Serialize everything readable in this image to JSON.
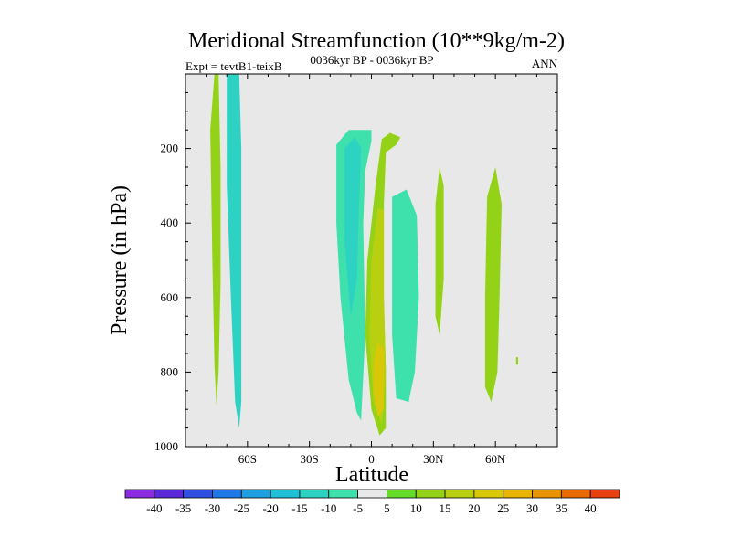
{
  "chart_data": {
    "type": "contour",
    "title": "Meridional Streamfunction (10**9kg/m-2)",
    "subtitle": "0036kyr BP - 0036kyr BP",
    "left_label": "Expt = tevtB1-teixB",
    "right_label": "ANN",
    "xlabel": "Latitude",
    "ylabel": "Pressure (in hPa)",
    "xlim": [
      -90,
      90
    ],
    "ylim": [
      1000,
      0
    ],
    "x_ticks": [
      {
        "value": -60,
        "label": "60S"
      },
      {
        "value": -30,
        "label": "30S"
      },
      {
        "value": 0,
        "label": "0"
      },
      {
        "value": 30,
        "label": "30N"
      },
      {
        "value": 60,
        "label": "60N"
      }
    ],
    "y_ticks": [
      {
        "value": 200,
        "label": "200"
      },
      {
        "value": 400,
        "label": "400"
      },
      {
        "value": 600,
        "label": "600"
      },
      {
        "value": 800,
        "label": "800"
      },
      {
        "value": 1000,
        "label": "1000"
      }
    ],
    "background_color": "#e8e8e8",
    "colorbar": {
      "labels": [
        "-40",
        "-35",
        "-30",
        "-25",
        "-20",
        "-15",
        "-10",
        "-5",
        "5",
        "10",
        "15",
        "20",
        "25",
        "30",
        "35",
        "40"
      ],
      "colors": [
        "#8a2be2",
        "#5a28d8",
        "#2f4fe0",
        "#1e78e8",
        "#1ea0e0",
        "#1ec0d8",
        "#2ed2c2",
        "#3ee0ac",
        "#e8e8e8",
        "#64dc28",
        "#94d218",
        "#b8d010",
        "#d8c808",
        "#e8b400",
        "#e89400",
        "#e86a00",
        "#e84010"
      ]
    },
    "regions": [
      {
        "value": 10,
        "points": [
          [
            -76,
            0
          ],
          [
            -74,
            0
          ],
          [
            -73,
            250
          ],
          [
            -73,
            560
          ],
          [
            -74,
            800
          ],
          [
            -75,
            890
          ],
          [
            -76,
            780
          ],
          [
            -77,
            500
          ],
          [
            -78,
            150
          ]
        ]
      },
      {
        "value": -15,
        "points": [
          [
            -70,
            0
          ],
          [
            -64,
            0
          ],
          [
            -63,
            200
          ],
          [
            -63,
            600
          ],
          [
            -63,
            880
          ],
          [
            -64,
            950
          ],
          [
            -66,
            880
          ],
          [
            -68,
            600
          ],
          [
            -70,
            300
          ]
        ]
      },
      {
        "value": -10,
        "points": [
          [
            -17,
            190
          ],
          [
            -11,
            150
          ],
          [
            -5,
            150
          ],
          [
            0,
            150
          ],
          [
            0,
            180
          ],
          [
            -3,
            260
          ],
          [
            -4,
            400
          ],
          [
            -3,
            700
          ],
          [
            -5,
            930
          ],
          [
            -7,
            910
          ],
          [
            -11,
            820
          ],
          [
            -15,
            600
          ],
          [
            -17,
            400
          ]
        ]
      },
      {
        "value": -15,
        "points": [
          [
            -13,
            200
          ],
          [
            -8,
            170
          ],
          [
            -5,
            200
          ],
          [
            -6,
            350
          ],
          [
            -7,
            550
          ],
          [
            -10,
            650
          ],
          [
            -13,
            450
          ]
        ]
      },
      {
        "value": 10,
        "points": [
          [
            5,
            175
          ],
          [
            9,
            158
          ],
          [
            14,
            170
          ],
          [
            12,
            190
          ],
          [
            7,
            210
          ],
          [
            6,
            350
          ],
          [
            6,
            600
          ],
          [
            7,
            800
          ],
          [
            7,
            950
          ],
          [
            4,
            970
          ],
          [
            0,
            900
          ],
          [
            -3,
            700
          ],
          [
            -2,
            500
          ],
          [
            2,
            300
          ]
        ]
      },
      {
        "value": 15,
        "points": [
          [
            3,
            360
          ],
          [
            6,
            365
          ],
          [
            6,
            600
          ],
          [
            7,
            800
          ],
          [
            5,
            940
          ],
          [
            1,
            880
          ],
          [
            -1,
            700
          ],
          [
            0,
            500
          ]
        ]
      },
      {
        "value": 20,
        "points": [
          [
            3,
            720
          ],
          [
            6,
            740
          ],
          [
            6,
            900
          ],
          [
            3,
            920
          ],
          [
            1,
            850
          ],
          [
            1,
            780
          ]
        ]
      },
      {
        "value": -10,
        "points": [
          [
            10,
            330
          ],
          [
            17,
            310
          ],
          [
            22,
            380
          ],
          [
            23,
            600
          ],
          [
            21,
            800
          ],
          [
            18,
            880
          ],
          [
            12,
            870
          ],
          [
            10,
            700
          ],
          [
            10,
            500
          ]
        ]
      },
      {
        "value": 10,
        "points": [
          [
            31,
            350
          ],
          [
            33,
            250
          ],
          [
            35,
            300
          ],
          [
            35,
            550
          ],
          [
            33,
            700
          ],
          [
            31,
            650
          ]
        ]
      },
      {
        "value": 10,
        "points": [
          [
            56,
            330
          ],
          [
            60,
            250
          ],
          [
            63,
            350
          ],
          [
            62,
            600
          ],
          [
            61,
            800
          ],
          [
            58,
            880
          ],
          [
            55,
            840
          ],
          [
            55,
            600
          ]
        ]
      },
      {
        "value": 10,
        "points": [
          [
            70,
            760
          ],
          [
            71,
            760
          ],
          [
            71,
            780
          ],
          [
            70,
            780
          ]
        ]
      }
    ]
  }
}
